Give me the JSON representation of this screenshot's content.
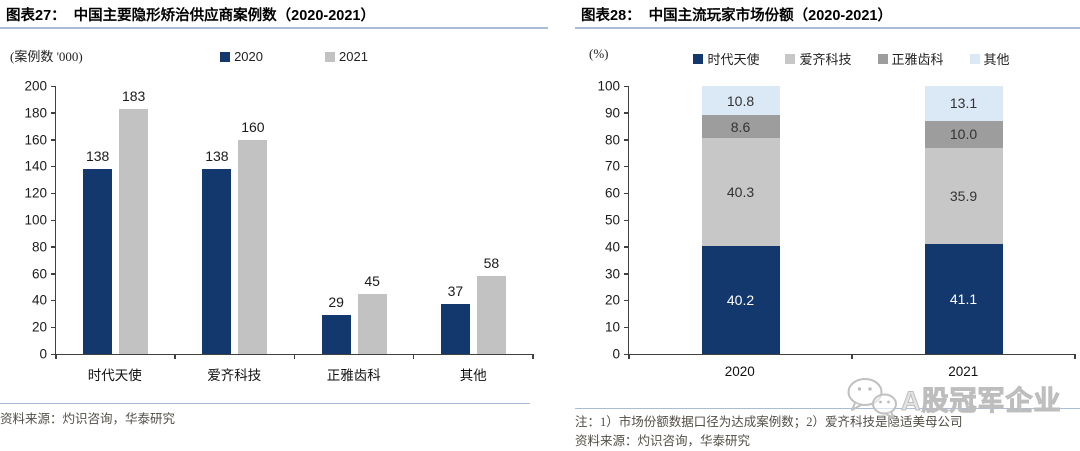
{
  "charts": [
    {
      "fig_label": "图表27：",
      "title": "中国主要隐形矫治供应商案例数（2020-2021）",
      "source": "资料来源：灼识咨询，华泰研究",
      "chart_data": {
        "type": "bar",
        "categories": [
          "时代天使",
          "爱齐科技",
          "正雅齿科",
          "其他"
        ],
        "series": [
          {
            "name": "2020",
            "color": "#13386e",
            "values": [
              138,
              138,
              29,
              37
            ]
          },
          {
            "name": "2021",
            "color": "#c2c2c2",
            "values": [
              183,
              160,
              45,
              58
            ]
          }
        ],
        "ylabel": "(案例数 '000)",
        "ylim": [
          0,
          200
        ],
        "ytick_step": 20,
        "legend_position": "top",
        "grid": false
      }
    },
    {
      "fig_label": "图表28：",
      "title": "中国主流玩家市场份额（2020-2021）",
      "note": "注：1）市场份额数据口径为达成案例数；2）爱齐科技是隐适美母公司",
      "source": "资料来源：灼识咨询，华泰研究",
      "chart_data": {
        "type": "stacked-bar",
        "categories": [
          "2020",
          "2021"
        ],
        "series": [
          {
            "name": "时代天使",
            "color": "#13386e",
            "label_color": "#ffffff",
            "values": [
              40.2,
              41.1
            ],
            "labels": [
              "40.2",
              "41.1"
            ]
          },
          {
            "name": "爱齐科技",
            "color": "#c7c7c7",
            "label_color": "#333333",
            "values": [
              40.3,
              35.9
            ],
            "labels": [
              "40.3",
              "35.9"
            ]
          },
          {
            "name": "正雅齿科",
            "color": "#9d9d9d",
            "label_color": "#333333",
            "values": [
              8.6,
              10.0
            ],
            "labels": [
              "8.6",
              "10.0"
            ]
          },
          {
            "name": "其他",
            "color": "#dbe8f6",
            "label_color": "#333333",
            "values": [
              10.8,
              13.1
            ],
            "labels": [
              "10.8",
              "13.1"
            ]
          }
        ],
        "ylabel": "(%)",
        "ylim": [
          0,
          100
        ],
        "ytick_step": 10,
        "legend_position": "top",
        "grid": false
      }
    }
  ],
  "watermark": {
    "icon": "wechat-icon",
    "text": "A股冠军企业"
  },
  "colors": {
    "navy": "#13386e",
    "gray_2021": "#c2c2c2",
    "light_gray": "#c7c7c7",
    "dark_gray": "#9d9d9d",
    "pale_blue": "#dbe8f6",
    "title_rule": "#a9bcd8",
    "axis": "#404040"
  }
}
